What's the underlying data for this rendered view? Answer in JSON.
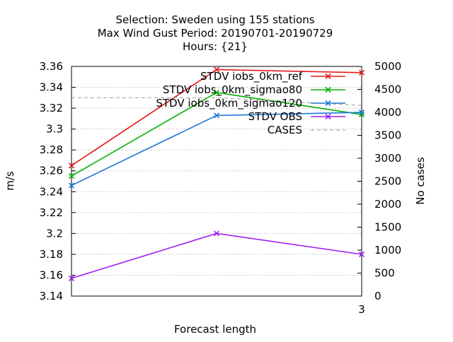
{
  "chart_data": {
    "type": "line",
    "title_lines": [
      "Selection: Sweden using   155 stations",
      "Max Wind Gust   Period: 20190701-20190729",
      "Hours: {21}"
    ],
    "xlabel": "Forecast length",
    "ylabel": "m/s",
    "y2label": "No cases",
    "x": [
      0,
      1,
      2
    ],
    "x_tick_labels": [
      "",
      "",
      "3"
    ],
    "ylim": [
      3.14,
      3.36
    ],
    "y_ticks": [
      "3.14",
      "3.16",
      "3.18",
      "3.2",
      "3.22",
      "3.24",
      "3.26",
      "3.28",
      "3.3",
      "3.32",
      "3.34",
      "3.36"
    ],
    "y2lim": [
      0,
      5000
    ],
    "y2_ticks": [
      "0",
      "500",
      "1000",
      "1500",
      "2000",
      "2500",
      "3000",
      "3500",
      "4000",
      "4500",
      "5000"
    ],
    "legend_position": "top-right",
    "series": [
      {
        "name": "STDV iobs_0km_ref",
        "axis": "y1",
        "color": "#e41a1c",
        "style": "solid",
        "values": [
          3.265,
          3.357,
          3.354
        ]
      },
      {
        "name": "STDV iobs_0km_sigmao80",
        "axis": "y1",
        "color": "#00b000",
        "style": "solid",
        "values": [
          3.255,
          3.335,
          3.314
        ]
      },
      {
        "name": "STDV iobs_0km_sigmao120",
        "axis": "y1",
        "color": "#1f78d4",
        "style": "solid",
        "values": [
          3.246,
          3.313,
          3.316
        ]
      },
      {
        "name": "STDV OBS",
        "axis": "y1",
        "color": "#a020f0",
        "style": "solid",
        "values": [
          3.157,
          3.2,
          3.18
        ]
      },
      {
        "name": "CASES",
        "axis": "y2",
        "color": "#999999",
        "style": "dashed",
        "values": [
          4320,
          4320,
          4150
        ]
      }
    ]
  }
}
